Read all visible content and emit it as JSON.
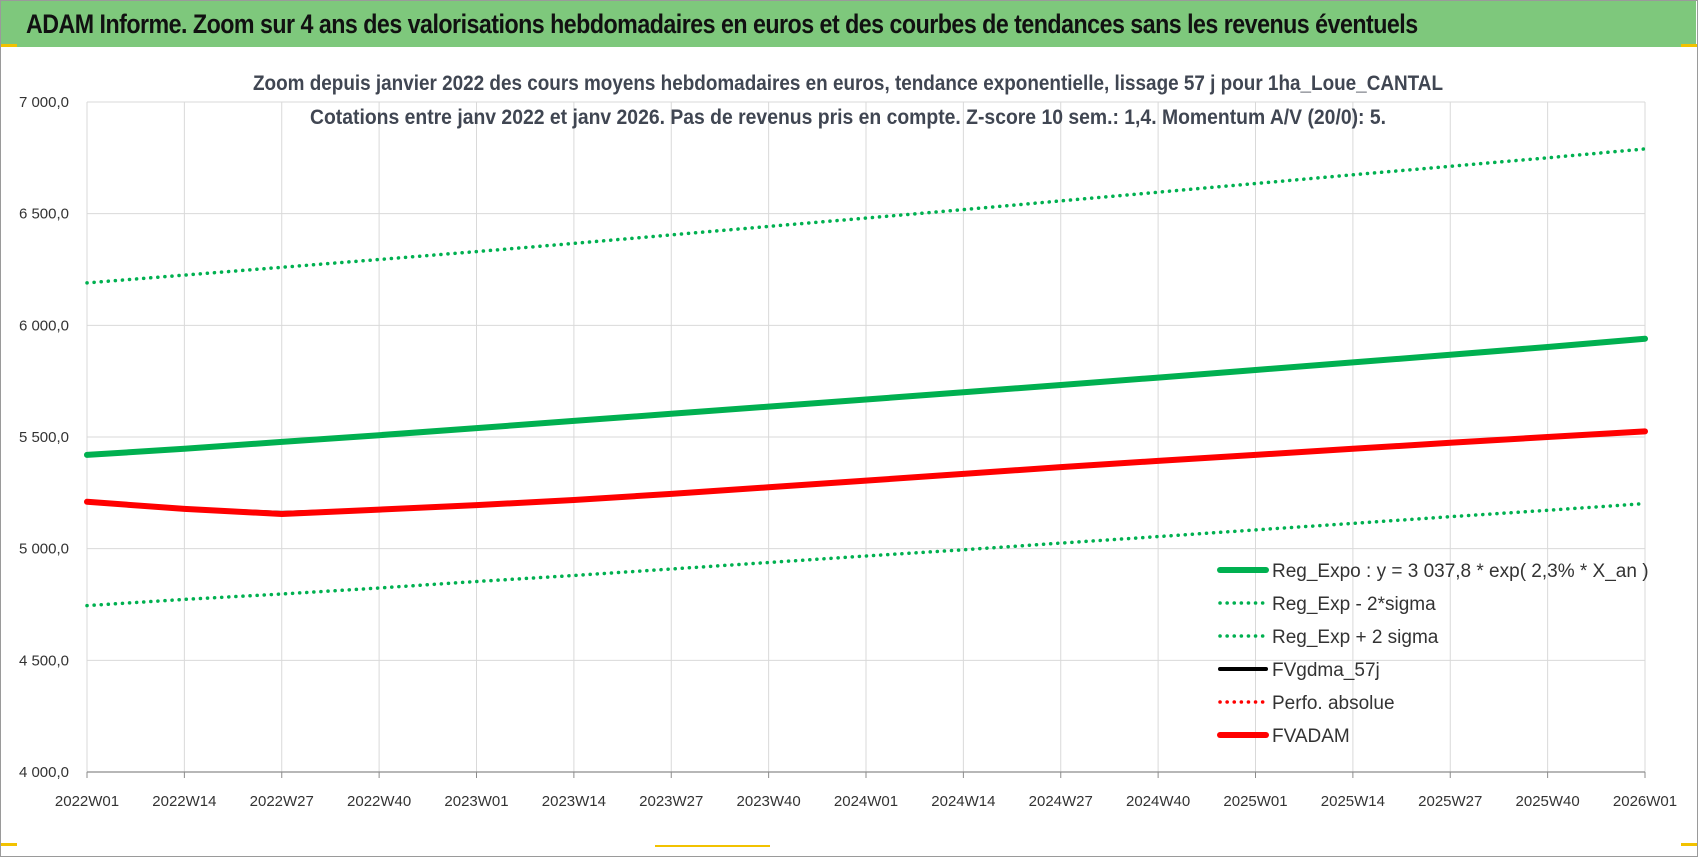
{
  "banner": {
    "title": "ADAM Informe. Zoom sur 4 ans des valorisations hebdomadaires en euros et des courbes de tendances sans les revenus éventuels"
  },
  "chart_data": {
    "type": "line",
    "title_lines": [
      "Zoom depuis janvier 2022 des cours moyens hebdomadaires en euros, tendance exponentielle, lissage 57 j pour 1ha_Loue_CANTAL",
      "Cotations entre janv 2022 et janv 2026. Pas de revenus pris en compte. Z-score 10 sem.: 1,4. Momentum A/V (20/0): 5."
    ],
    "xlabel": "",
    "ylabel": "",
    "ylim": [
      4000,
      7000
    ],
    "y_ticks": [
      "7 000,0",
      "6 500,0",
      "6 000,0",
      "5 500,0",
      "5 000,0",
      "4 500,0",
      "4 000,0"
    ],
    "y_tick_values": [
      7000,
      6500,
      6000,
      5500,
      5000,
      4500,
      4000
    ],
    "x_ticks": [
      "2022W01",
      "2022W14",
      "2022W27",
      "2022W40",
      "2023W01",
      "2023W14",
      "2023W27",
      "2023W40",
      "2024W01",
      "2024W14",
      "2024W27",
      "2024W40",
      "2025W01",
      "2025W14",
      "2025W27",
      "2025W40",
      "2026W01"
    ],
    "grid": true,
    "legend_position": "bottom-right",
    "series": [
      {
        "name": "Reg_Expo : y = 3 037,8 * exp( 2,3% *  X_an )",
        "color": "#00b050",
        "style": "solid-thick",
        "values": [
          5420,
          5447,
          5478,
          5508,
          5540,
          5572,
          5604,
          5636,
          5668,
          5700,
          5733,
          5766,
          5800,
          5834,
          5868,
          5903,
          5940
        ]
      },
      {
        "name": "Reg_Exp - 2*sigma",
        "color": "#00b050",
        "style": "dotted",
        "values": [
          4745,
          4773,
          4797,
          4824,
          4853,
          4880,
          4909,
          4938,
          4967,
          4995,
          5025,
          5054,
          5084,
          5113,
          5143,
          5172,
          5202
        ]
      },
      {
        "name": "Reg_Exp + 2 sigma",
        "color": "#00b050",
        "style": "dotted",
        "values": [
          6190,
          6225,
          6260,
          6295,
          6330,
          6367,
          6405,
          6443,
          6480,
          6518,
          6557,
          6596,
          6635,
          6674,
          6712,
          6750,
          6790
        ]
      },
      {
        "name": "FVgdma_57j",
        "color": "#000000",
        "style": "solid",
        "values": [
          5210,
          5178,
          5160,
          5175,
          5195,
          5218,
          5245,
          5275,
          5305,
          5335,
          5365,
          5393,
          5420,
          5447,
          5474,
          5500,
          5525
        ]
      },
      {
        "name": "Perfo. absolue",
        "color": "#ff0000",
        "style": "dotted",
        "values": []
      },
      {
        "name": "FVADAM",
        "color": "#ff0000",
        "style": "solid-thick",
        "values": [
          5210,
          5178,
          5155,
          5175,
          5195,
          5218,
          5245,
          5275,
          5305,
          5335,
          5365,
          5393,
          5420,
          5447,
          5474,
          5500,
          5525
        ]
      }
    ]
  }
}
